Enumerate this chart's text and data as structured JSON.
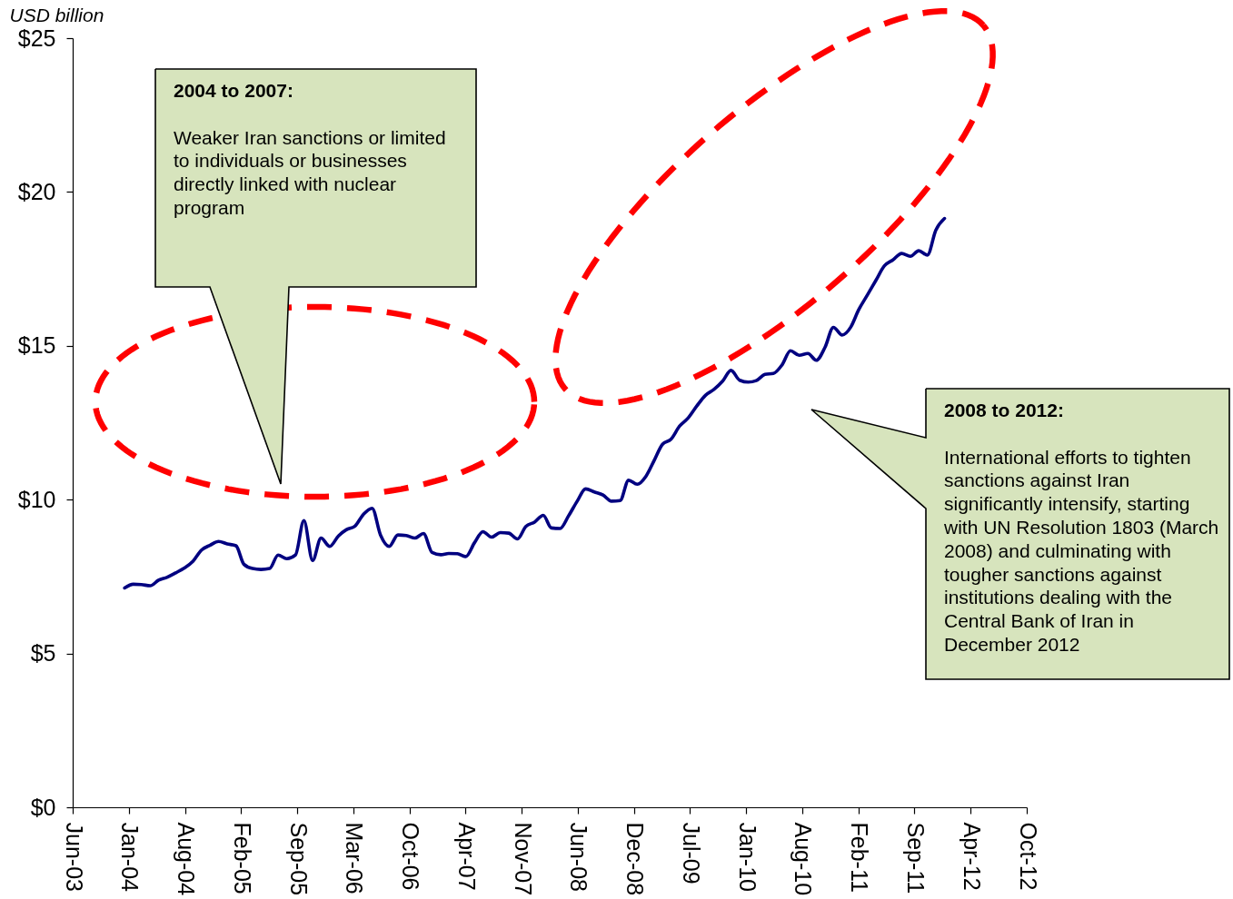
{
  "chart_data": {
    "type": "line",
    "ylabel": "USD billion",
    "annotations": [
      "2004 to 2007:",
      "Weaker Iran sanctions or limited\nto  individuals or businesses\ndirectly linked with nuclear\nprogram",
      "2008 to 2012:",
      "International efforts to tighten\nsanctions against Iran\nsignificantly intensify, starting\nwith UN Resolution 1803 (March\n2008) and culminating with\ntougher sanctions against\ninstitutions dealing with the\nCentral Bank of Iran in\nDecember 2012"
    ],
    "x": [
      "2004-01",
      "2004-02",
      "2004-03",
      "2004-04",
      "2004-05",
      "2004-06",
      "2004-07",
      "2004-08",
      "2004-09",
      "2004-10",
      "2004-11",
      "2004-12",
      "2005-01",
      "2005-02",
      "2005-03",
      "2005-04",
      "2005-05",
      "2005-06",
      "2005-07",
      "2005-08",
      "2005-09",
      "2005-10",
      "2005-11",
      "2005-12",
      "2006-01",
      "2006-02",
      "2006-03",
      "2006-04",
      "2006-05",
      "2006-06",
      "2006-07",
      "2006-08",
      "2006-09",
      "2006-10",
      "2006-11",
      "2006-12",
      "2007-01",
      "2007-02",
      "2007-03",
      "2007-04",
      "2007-05",
      "2007-06",
      "2007-07",
      "2007-08",
      "2007-09",
      "2007-10",
      "2007-11",
      "2007-12",
      "2008-01",
      "2008-02",
      "2008-03",
      "2008-04",
      "2008-05",
      "2008-06",
      "2008-07",
      "2008-08",
      "2008-09",
      "2008-10",
      "2008-11",
      "2008-12",
      "2009-01",
      "2009-02",
      "2009-03",
      "2009-04",
      "2009-05",
      "2009-06",
      "2009-07",
      "2009-08",
      "2009-09",
      "2009-10",
      "2009-11",
      "2009-12",
      "2010-01",
      "2010-02",
      "2010-03",
      "2010-04",
      "2010-05",
      "2010-06",
      "2010-07",
      "2010-08",
      "2010-09",
      "2010-10",
      "2010-11",
      "2010-12",
      "2011-01",
      "2011-02",
      "2011-03",
      "2011-04",
      "2011-05",
      "2011-06",
      "2011-07",
      "2011-08",
      "2011-09",
      "2011-10",
      "2011-11",
      "2011-12",
      "2012-01"
    ],
    "series": [
      {
        "color": "#000080",
        "values": [
          7.13,
          7.25,
          7.24,
          7.2,
          7.38,
          7.48,
          7.62,
          7.78,
          8.0,
          8.36,
          8.52,
          8.64,
          8.56,
          8.5,
          7.9,
          7.76,
          7.73,
          7.76,
          8.2,
          8.08,
          8.2,
          9.32,
          8.02,
          8.75,
          8.48,
          8.82,
          9.02,
          9.14,
          9.52,
          9.72,
          8.85,
          8.48,
          8.85,
          8.83,
          8.75,
          8.9,
          8.28,
          8.21,
          8.25,
          8.24,
          8.15,
          8.6,
          8.96,
          8.78,
          8.93,
          8.91,
          8.72,
          9.13,
          9.27,
          9.49,
          9.08,
          9.06,
          9.47,
          9.95,
          10.35,
          10.25,
          10.15,
          9.95,
          9.97,
          10.63,
          10.5,
          10.76,
          11.25,
          11.8,
          11.96,
          12.39,
          12.65,
          13.04,
          13.39,
          13.58,
          13.85,
          14.2,
          13.88,
          13.82,
          13.87,
          14.07,
          14.1,
          14.38,
          14.84,
          14.69,
          14.75,
          14.53,
          14.95,
          15.6,
          15.35,
          15.61,
          16.17,
          16.65,
          17.12,
          17.6,
          17.79,
          18.0,
          17.91,
          18.09,
          17.95,
          18.76,
          19.14
        ]
      }
    ],
    "xlim": [
      "2003-06-30",
      "2012-10-20"
    ],
    "xticks": [
      {
        "value": "2003-06-30",
        "label": "Jun-03"
      },
      {
        "value": "2004-01-16",
        "label": "Jan-04"
      },
      {
        "value": "2004-08-03",
        "label": "Aug-04"
      },
      {
        "value": "2005-02-19",
        "label": "Feb-05"
      },
      {
        "value": "2005-09-07",
        "label": "Sep-05"
      },
      {
        "value": "2006-03-26",
        "label": "Mar-06"
      },
      {
        "value": "2006-10-12",
        "label": "Oct-06"
      },
      {
        "value": "2007-04-30",
        "label": "Apr-07"
      },
      {
        "value": "2007-11-16",
        "label": "Nov-07"
      },
      {
        "value": "2008-06-03",
        "label": "Jun-08"
      },
      {
        "value": "2008-12-20",
        "label": "Dec-08"
      },
      {
        "value": "2009-07-08",
        "label": "Jul-09"
      },
      {
        "value": "2010-01-24",
        "label": "Jan-10"
      },
      {
        "value": "2010-08-12",
        "label": "Aug-10"
      },
      {
        "value": "2011-02-28",
        "label": "Feb-11"
      },
      {
        "value": "2011-09-16",
        "label": "Sep-11"
      },
      {
        "value": "2012-04-03",
        "label": "Apr-12"
      },
      {
        "value": "2012-10-20",
        "label": "Oct-12"
      }
    ],
    "ylim": [
      0,
      25
    ],
    "yticks": [
      {
        "value": 0,
        "label": "$0"
      },
      {
        "value": 5,
        "label": "$5"
      },
      {
        "value": 10,
        "label": "$10"
      },
      {
        "value": 15,
        "label": "$15"
      },
      {
        "value": 20,
        "label": "$20"
      },
      {
        "value": 25,
        "label": "$25"
      }
    ],
    "grid": false,
    "marker": "none",
    "line_style": "solid"
  }
}
